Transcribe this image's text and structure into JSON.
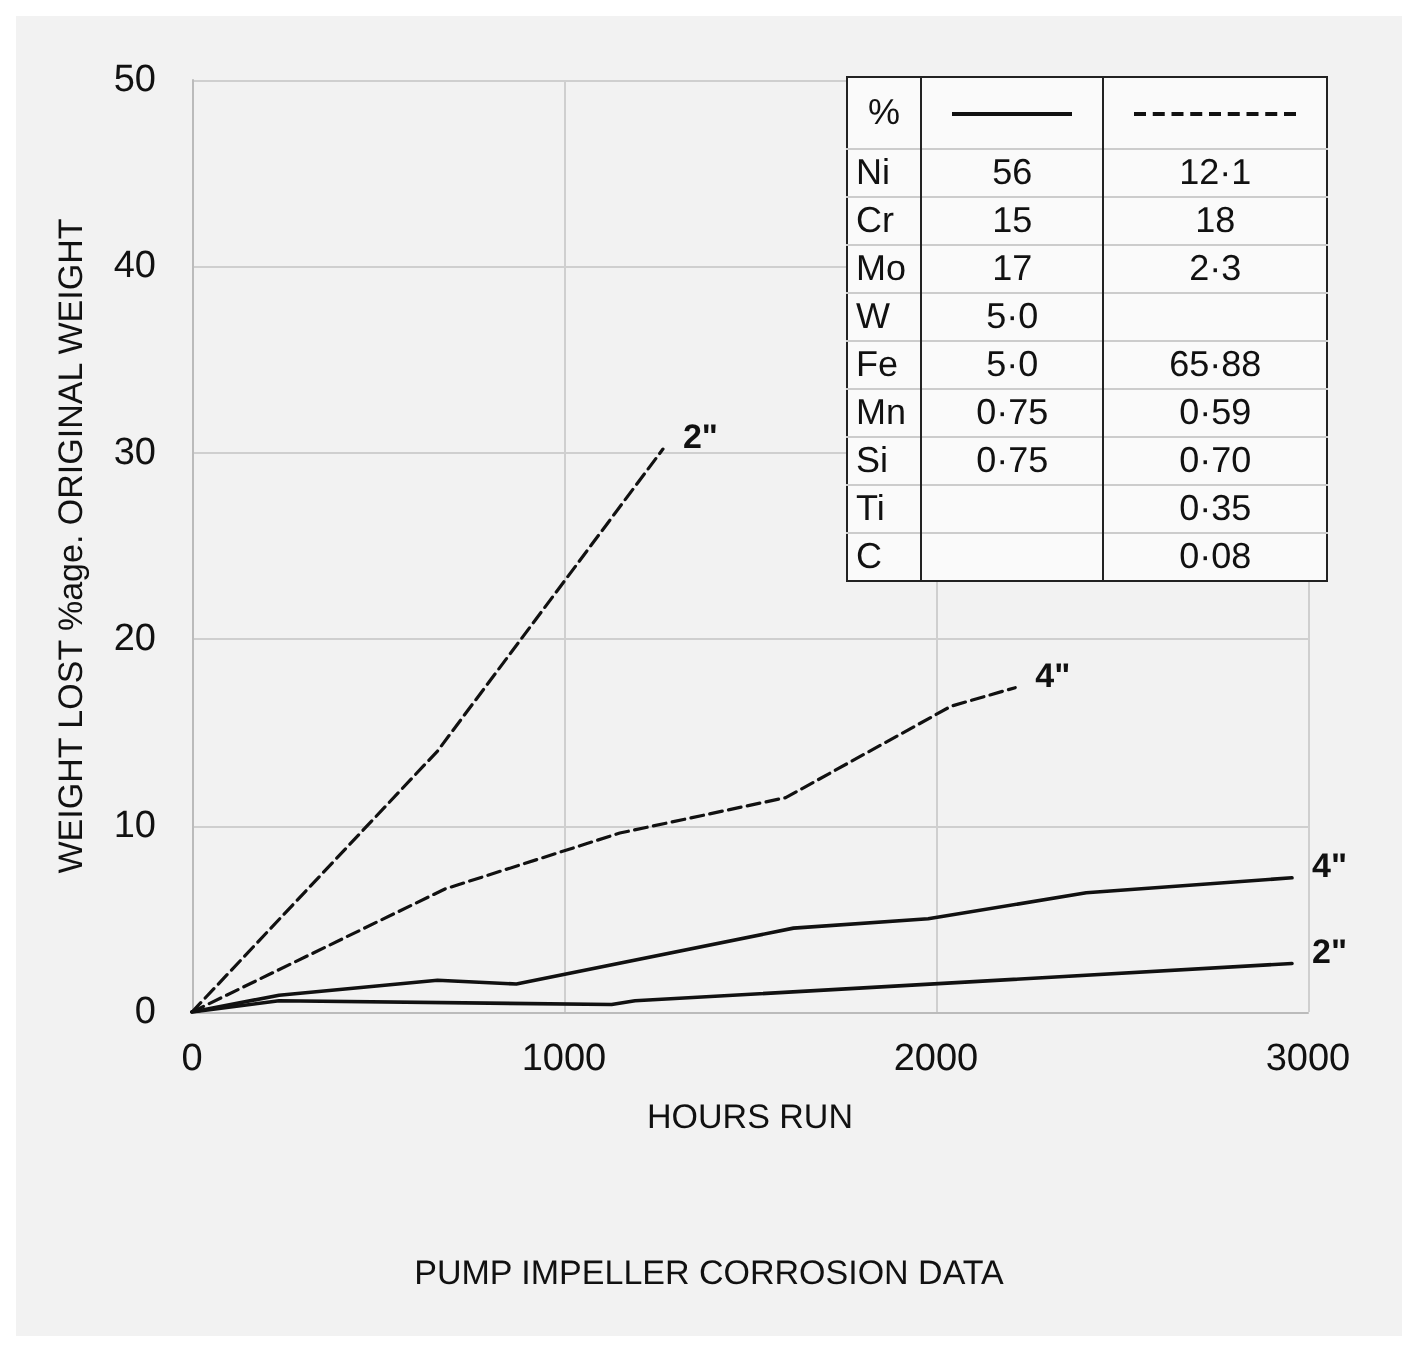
{
  "chart_data": {
    "type": "line",
    "title": "PUMP IMPELLER CORROSION DATA",
    "xlabel": "HOURS RUN",
    "ylabel": "WEIGHT LOST %age. ORIGINAL WEIGHT",
    "xlim": [
      0,
      3000
    ],
    "xticks": [
      0,
      1000,
      2000,
      3000
    ],
    "ylim": [
      0,
      50
    ],
    "yticks": [
      0,
      10,
      20,
      30,
      40,
      50
    ],
    "grid": true,
    "legend": false,
    "marker": "none",
    "series": [
      {
        "name": "2\"",
        "color": "#111111",
        "line_style": "dashed",
        "x": [
          0,
          660,
          1266
        ],
        "values": [
          0,
          14.0,
          30.2
        ]
      },
      {
        "name": "4\"",
        "color": "#111111",
        "line_style": "dashed",
        "x": [
          0,
          680,
          1150,
          1596,
          2040,
          2213
        ],
        "values": [
          0,
          6.6,
          9.6,
          11.5,
          16.4,
          17.4
        ]
      },
      {
        "name": "4\"",
        "color": "#111111",
        "line_style": "solid",
        "x": [
          0,
          234,
          660,
          872,
          1617,
          1979,
          2404,
          2957
        ],
        "values": [
          0,
          0.9,
          1.7,
          1.5,
          4.5,
          5.0,
          6.4,
          7.2
        ]
      },
      {
        "name": "2\"",
        "color": "#111111",
        "line_style": "solid",
        "x": [
          0,
          234,
          1128,
          1191,
          2957
        ],
        "values": [
          0,
          0.6,
          0.4,
          0.6,
          2.6
        ]
      }
    ],
    "annotations": [
      "%",
      "Ni",
      "56",
      "12·1",
      "Cr",
      "15",
      "18",
      "Mo",
      "17",
      "2·3",
      "W",
      "5·0",
      null,
      "Fe",
      "5·0",
      "65·88",
      "Mn",
      "0·75",
      "0·59",
      "Si",
      "0·75",
      "0·70",
      "Ti",
      null,
      "0·35",
      "C",
      null,
      "0·08"
    ]
  }
}
